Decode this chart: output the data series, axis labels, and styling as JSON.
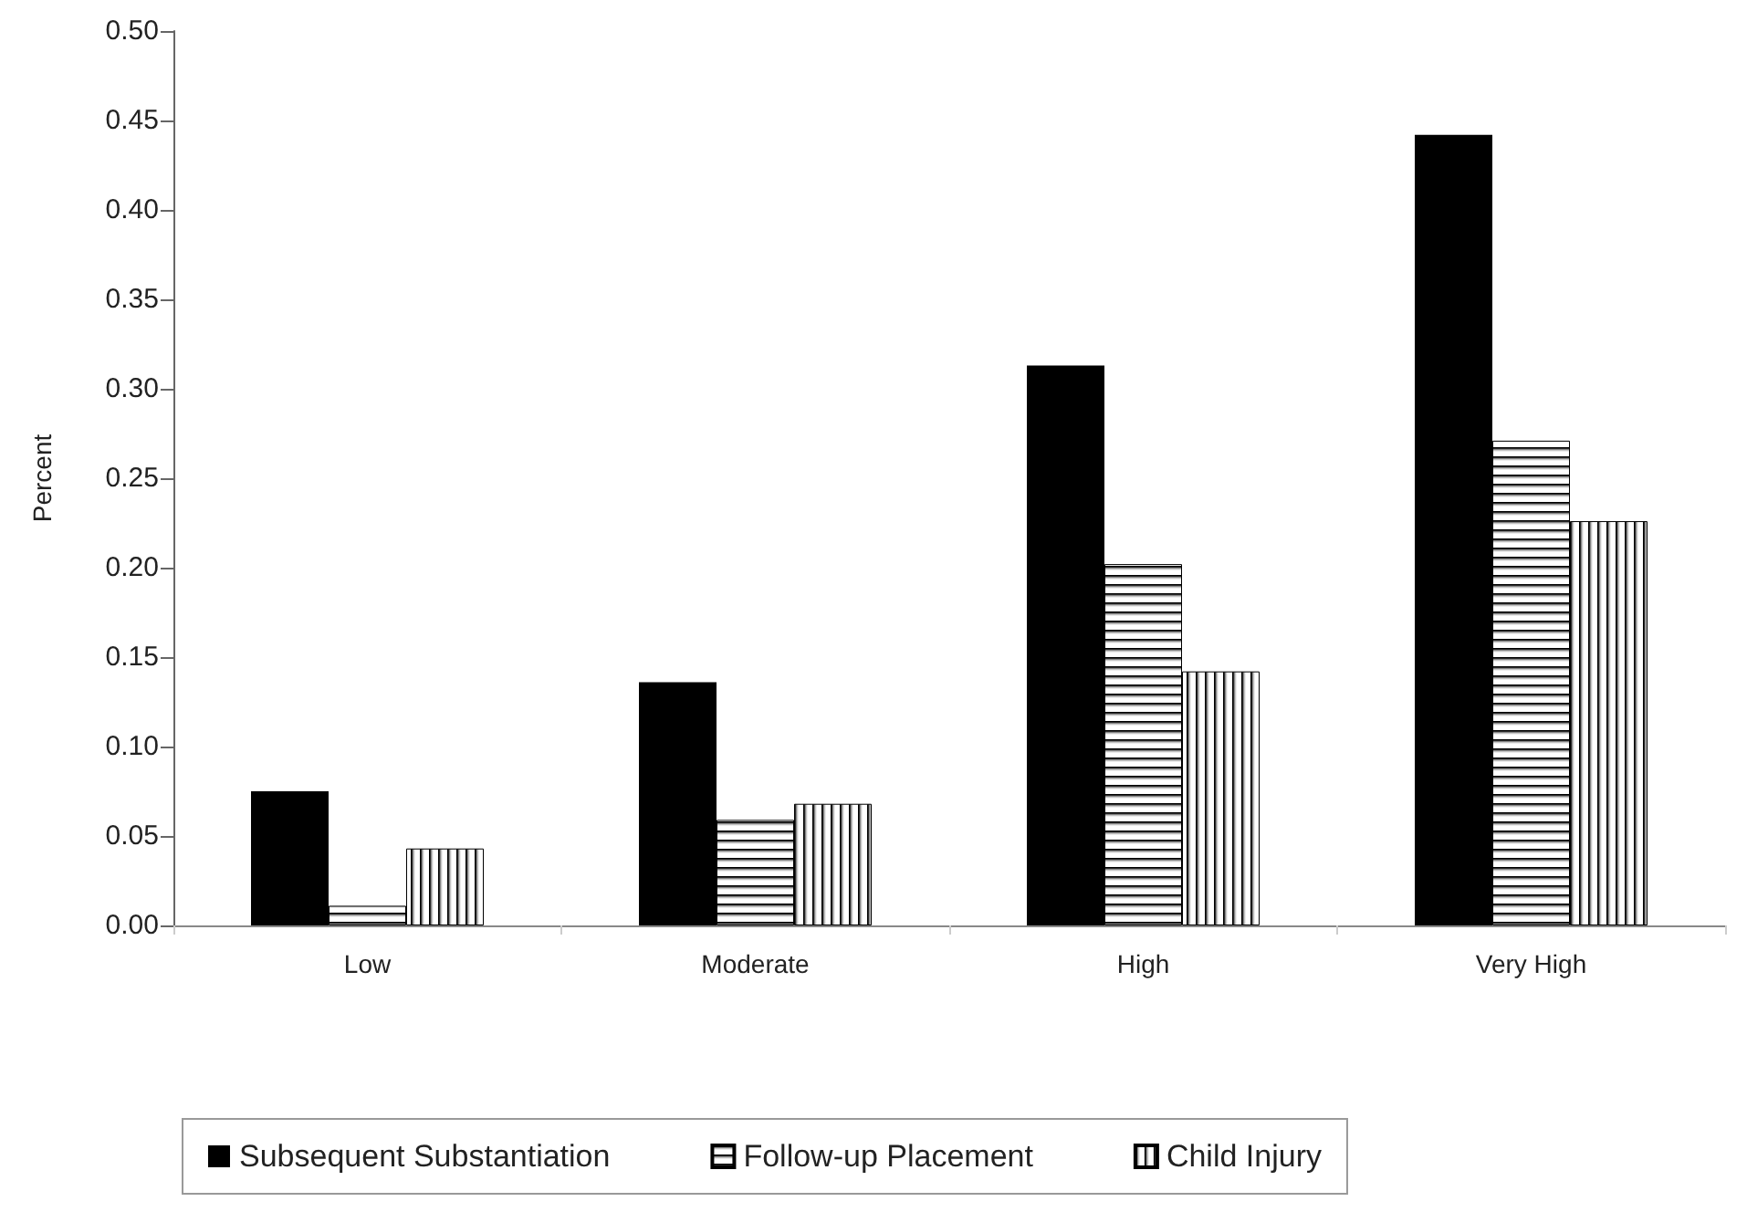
{
  "chart_data": {
    "type": "bar",
    "ylabel": "Percent",
    "categories": [
      "Low",
      "Moderate",
      "High",
      "Very High"
    ],
    "series": [
      {
        "name": "Subsequent Substantiation",
        "color": "#000000",
        "values": [
          0.075,
          0.136,
          0.313,
          0.442
        ]
      },
      {
        "name": "Follow-up Placement",
        "color": "#000000",
        "values": [
          0.011,
          0.059,
          0.202,
          0.271
        ]
      },
      {
        "name": "Child Injury",
        "color": "#000000",
        "values": [
          0.043,
          0.068,
          0.142,
          0.226
        ]
      }
    ],
    "ylim": [
      0,
      0.5
    ],
    "yticks": [
      {
        "value": 0,
        "label": "0.00"
      },
      0.05,
      {
        "value": 0.1,
        "label": "0.10"
      },
      0.15,
      {
        "value": 0.2,
        "label": "0.20"
      },
      0.25,
      {
        "value": 0.3,
        "label": "0.30"
      },
      0.35,
      {
        "value": 0.4,
        "label": "0.40"
      },
      0.45,
      {
        "value": 0.5,
        "label": "0.50"
      }
    ],
    "grid": false,
    "legend": "bottom"
  }
}
